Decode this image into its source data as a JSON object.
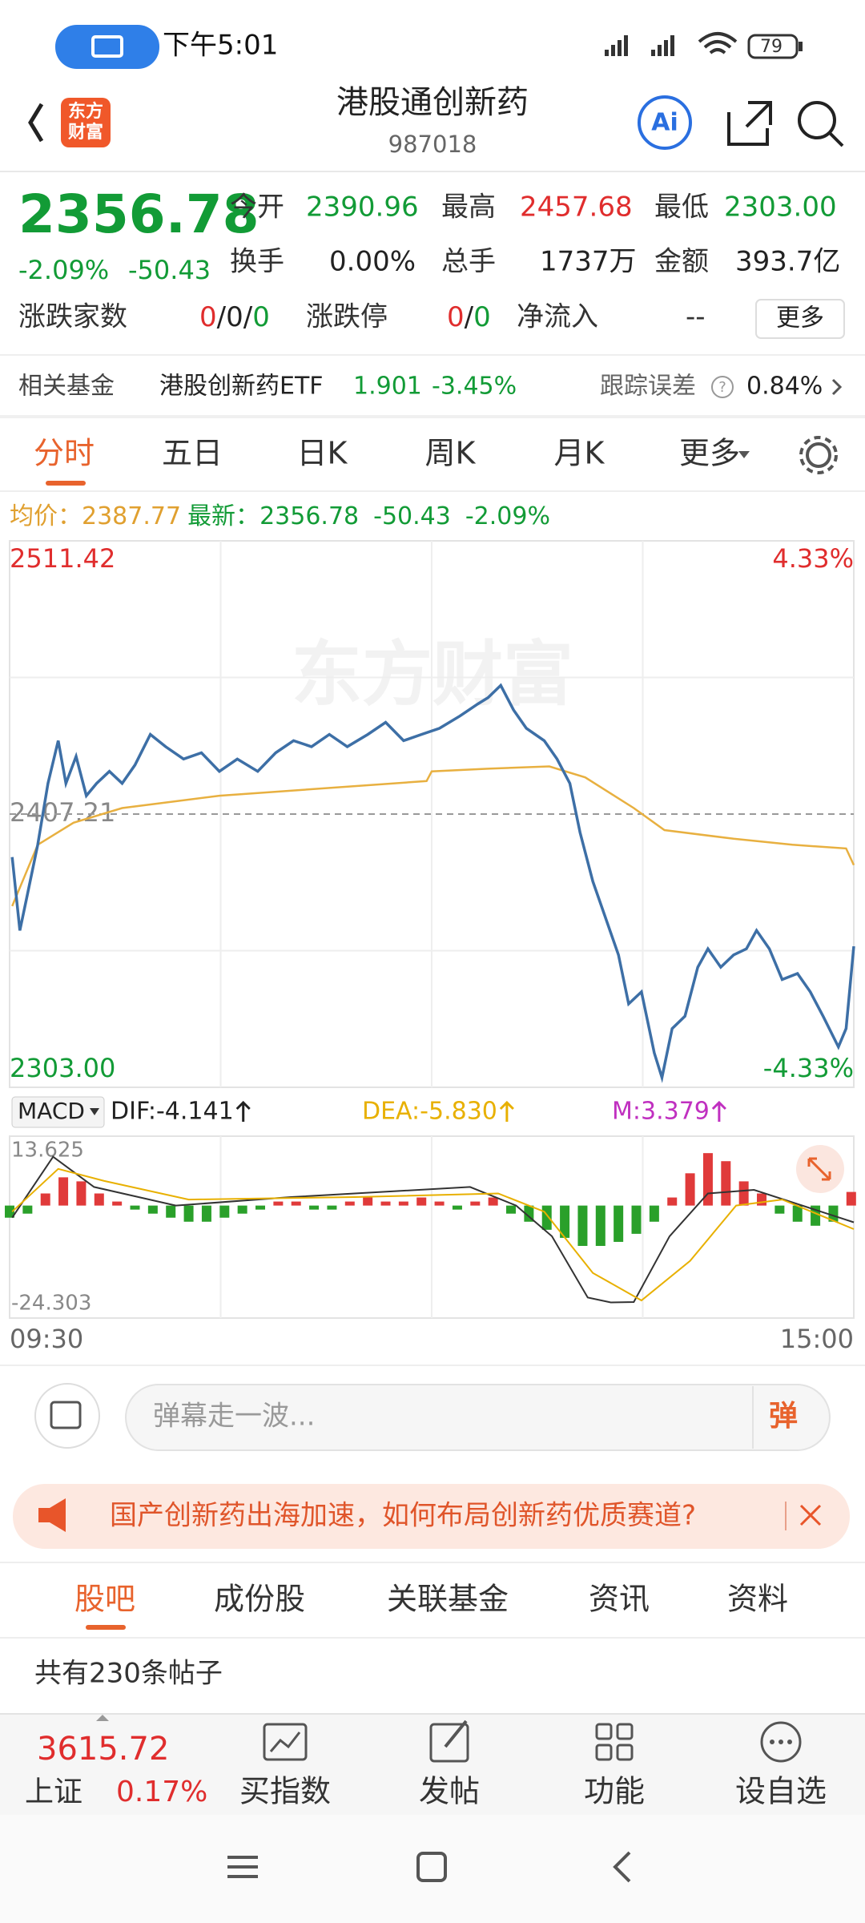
{
  "status_bar": {
    "time": "下午5:01",
    "battery": "79"
  },
  "header": {
    "logo": [
      "东方",
      "财富"
    ],
    "title": "港股通创新药",
    "code": "987018",
    "ai": "Ai"
  },
  "quote": {
    "price": "2356.78",
    "change_pct": "-2.09%",
    "change": "-50.43",
    "fields": [
      {
        "label": "今开",
        "value": "2390.96"
      },
      {
        "label": "最高",
        "value": "2457.68"
      },
      {
        "label": "最低",
        "value": "2303.00"
      },
      {
        "label": "换手",
        "value": "0.00%"
      },
      {
        "label": "总手",
        "value": "1737万"
      },
      {
        "label": "金额",
        "value": "393.7亿"
      }
    ],
    "separator": "/",
    "advance_decline": {
      "label": "涨跌家数",
      "up": "0",
      "flat": "0",
      "down": "0"
    },
    "limit": {
      "label": "涨跌停",
      "up": "0",
      "down": "0"
    },
    "net_inflow": {
      "label": "净流入",
      "value": "--"
    },
    "more": "更多"
  },
  "fund": {
    "label": "相关基金",
    "name": "港股创新药ETF",
    "price": "1.901",
    "change": "-3.45%",
    "error_label": "跟踪误差",
    "error": "0.84%"
  },
  "tabs": [
    "分时",
    "五日",
    "日K",
    "周K",
    "月K",
    "更多"
  ],
  "legend": {
    "avg": "2387.77",
    "last": "2356.78",
    "change": "-50.43",
    "pct": "-2.09%"
  },
  "watermark": "东方财富",
  "chart_data": [
    {
      "type": "line",
      "xlim": [
        0,
        330
      ],
      "xticks": [
        {
          "value": 0,
          "label": "09:30"
        },
        {
          "value": 330,
          "label": "15:00"
        }
      ],
      "ylim": [
        2303,
        2511.42
      ],
      "yticks": [
        2511.42,
        2407.21,
        {
          "value": 2303,
          "label": "2303.00"
        }
      ],
      "y2lim": [
        -4.33,
        4.33
      ],
      "y2ticks": [
        {
          "value": 4.33,
          "label": "4.33%"
        },
        {
          "value": -4.33,
          "label": "-4.33%"
        }
      ],
      "grid": true,
      "series": [
        {
          "name": "均价：",
          "color": "#e8b040",
          "x": [
            1,
            11,
            25,
            44,
            82,
            163,
            165,
            187,
            211,
            225,
            244,
            256,
            283,
            306,
            327,
            330
          ],
          "values": [
            2372.1,
            2395.5,
            2403.9,
            2409.5,
            2414.2,
            2419.8,
            2423.5,
            2424.5,
            2425.4,
            2421.2,
            2409.5,
            2401.1,
            2397.8,
            2395.5,
            2394.1,
            2387.77
          ]
        },
        {
          "name": "最新：",
          "color": "#3d6fa6",
          "x": [
            1,
            4,
            7,
            11,
            15,
            19,
            22,
            26,
            30,
            34,
            39,
            44,
            49,
            55,
            61,
            68,
            75,
            82,
            89,
            97,
            104,
            111,
            118,
            125,
            132,
            140,
            147,
            154,
            161,
            168,
            176,
            183,
            187,
            192,
            197,
            202,
            209,
            214,
            219,
            223,
            228,
            233,
            238,
            242,
            247,
            252,
            255,
            259,
            264,
            269,
            273,
            278,
            283,
            288,
            292,
            297,
            302,
            308,
            313,
            318,
            324,
            327,
            330
          ],
          "values": [
            2390.8,
            2362.8,
            2376.8,
            2395.5,
            2418.9,
            2435.2,
            2418.9,
            2429.2,
            2414.2,
            2418.9,
            2423.5,
            2418.9,
            2425.9,
            2437.6,
            2432.9,
            2428.2,
            2430.6,
            2423.5,
            2428.2,
            2423.5,
            2430.6,
            2435.2,
            2432.9,
            2437.6,
            2432.9,
            2437.6,
            2442.2,
            2435.2,
            2437.6,
            2439.9,
            2444.6,
            2449.2,
            2451.6,
            2456.3,
            2446.9,
            2439.9,
            2435.2,
            2428.2,
            2418.9,
            2400.2,
            2381.5,
            2367.5,
            2353.5,
            2334.8,
            2339.4,
            2316.1,
            2306.7,
            2325.4,
            2330.1,
            2348.8,
            2355.8,
            2348.8,
            2353.5,
            2355.8,
            2362.8,
            2355.8,
            2344.1,
            2346.4,
            2339.4,
            2330.1,
            2318.4,
            2325.4,
            2356.78
          ]
        }
      ]
    },
    {
      "type": "macd",
      "title": "MACD",
      "xlim": [
        0,
        330
      ],
      "ylim": [
        -24.303,
        13.625
      ],
      "yticks": [
        13.625,
        -24.303
      ],
      "series": [
        {
          "name": "M:3.379",
          "color": "#e03a3a",
          "negative_color": "#2aa02a",
          "x": [
            0,
            7,
            14,
            21,
            28,
            35,
            42,
            49,
            56,
            63,
            70,
            77,
            84,
            91,
            98,
            105,
            112,
            119,
            126,
            133,
            140,
            147,
            154,
            161,
            168,
            175,
            182,
            189,
            196,
            203,
            210,
            217,
            224,
            231,
            238,
            245,
            252,
            259,
            266,
            273,
            280,
            287,
            294,
            301,
            308,
            315,
            322,
            329
          ],
          "values": [
            -3,
            -2,
            3,
            7,
            6,
            3,
            1,
            -1,
            -2,
            -3,
            -4,
            -4,
            -3,
            -2,
            -1,
            1,
            1,
            -1,
            -1,
            1,
            2,
            1,
            1,
            2,
            1,
            -1,
            1,
            2,
            -2,
            -4,
            -6,
            -8,
            -10,
            -10,
            -9,
            -7,
            -4,
            2,
            8,
            13,
            11,
            6,
            3,
            -2,
            -4,
            -5,
            -4,
            3.379
          ]
        },
        {
          "name": "DIF:-4.141",
          "color": "#333333",
          "x": [
            1,
            17,
            33,
            65,
            110,
            180,
            198,
            212,
            226,
            235,
            244,
            258,
            273,
            291,
            330
          ],
          "values": [
            -3.0,
            12.1,
            4.6,
            0,
            2.1,
            4.6,
            0,
            -7.6,
            -22.8,
            -24.0,
            -23.9,
            -7.6,
            3.0,
            3.9,
            -4.141
          ]
        },
        {
          "name": "DEA:-5.830",
          "color": "#e8b000",
          "x": [
            1,
            19,
            37,
            70,
            135,
            191,
            209,
            228,
            247,
            266,
            284,
            302,
            330
          ],
          "values": [
            -1.5,
            9.1,
            6.1,
            1.5,
            2.1,
            3.0,
            -1.5,
            -16.7,
            -23.5,
            -13.7,
            0,
            1.5,
            -5.83
          ]
        }
      ]
    }
  ],
  "comment": {
    "placeholder": "弹幕走一波...",
    "button": "弹"
  },
  "banner": {
    "text": "国产创新药出海加速，如何布局创新药优质赛道?"
  },
  "section_tabs": [
    "股吧",
    "成份股",
    "关联基金",
    "资讯",
    "资料"
  ],
  "posts": "共有230条帖子",
  "bottom_bar": {
    "index": {
      "name": "上证",
      "value": "3615.72",
      "pct": "0.17%"
    },
    "buttons": [
      "买指数",
      "发帖",
      "功能",
      "设自选"
    ]
  }
}
